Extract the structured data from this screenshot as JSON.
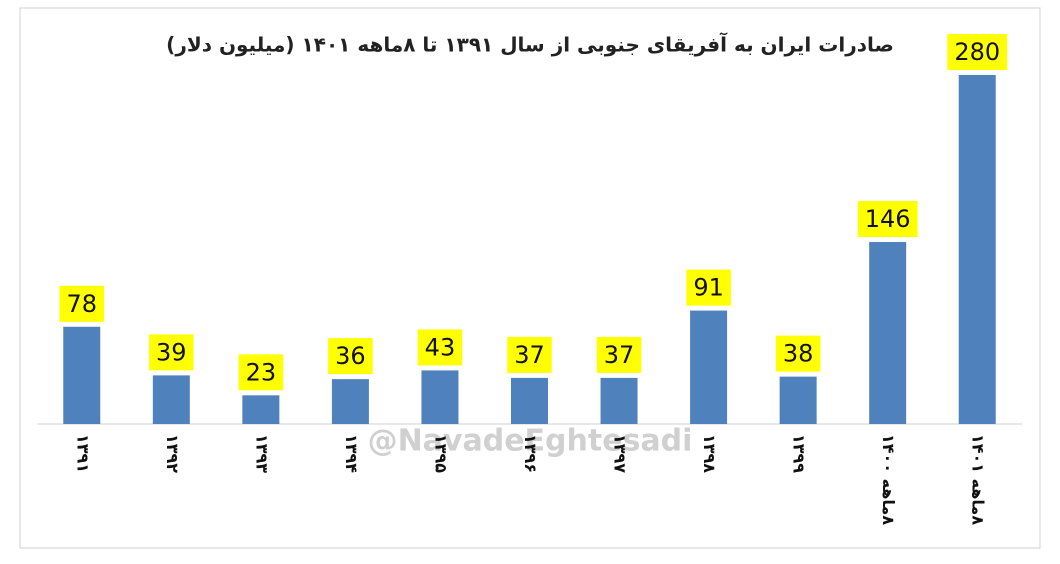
{
  "chart_data": {
    "type": "bar",
    "title": "صادرات ایران به آفریقای جنوبی از سال ۱۳۹۱ تا ۸ماهه ۱۴۰۱ (میلیون دلار)",
    "categories": [
      "۱۳۹۱",
      "۱۳۹۲",
      "۱۳۹۳",
      "۱۳۹۴",
      "۱۳۹۵",
      "۱۳۹۶",
      "۱۳۹۷",
      "۱۳۹۸",
      "۱۳۹۹",
      "۸ماهه ۱۴۰۰",
      "۸ماهه ۱۴۰۱"
    ],
    "values": [
      78,
      39,
      23,
      36,
      43,
      37,
      37,
      91,
      38,
      146,
      280
    ],
    "color": "#4f81bd",
    "watermark": "@NavadeEghtesadi"
  }
}
